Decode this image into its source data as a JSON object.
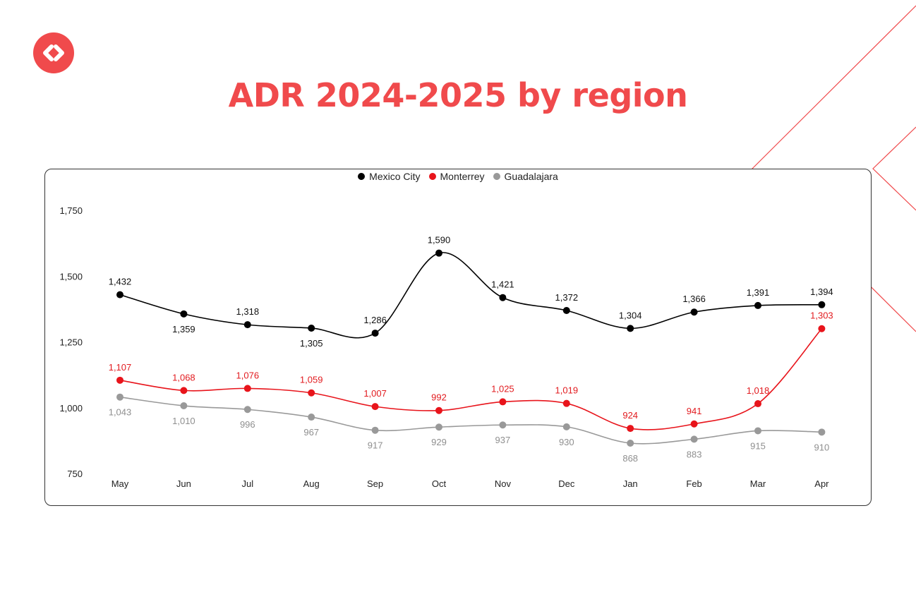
{
  "brand": {
    "logo_icon": "chevrons-left-right-icon",
    "accent": "#f04a4c"
  },
  "title": "ADR 2024-2025 by region",
  "chart_data": {
    "type": "line",
    "title": "ADR 2024-2025 by region",
    "categories": [
      "May",
      "Jun",
      "Jul",
      "Aug",
      "Sep",
      "Oct",
      "Nov",
      "Dec",
      "Jan",
      "Feb",
      "Mar",
      "Apr"
    ],
    "yticks": [
      "1,750",
      "1,500",
      "1,250",
      "1,000",
      "750"
    ],
    "ytick_values": [
      1750,
      1500,
      1250,
      1000,
      750
    ],
    "ylim": [
      750,
      1750
    ],
    "legend_position": "top-center",
    "series": [
      {
        "name": "Mexico City",
        "color": "#000000",
        "values": [
          1432,
          1359,
          1318,
          1305,
          1286,
          1590,
          1421,
          1372,
          1304,
          1366,
          1391,
          1394
        ],
        "labels": [
          "1,432",
          "1,359",
          "1,318",
          "1,305",
          "1,286",
          "1,590",
          "1,421",
          "1,372",
          "1,304",
          "1,366",
          "1,391",
          "1,394"
        ],
        "label_side": [
          "above",
          "below",
          "above",
          "below",
          "above",
          "above",
          "above",
          "above",
          "above",
          "above",
          "above",
          "above"
        ]
      },
      {
        "name": "Monterrey",
        "color": "#e8141b",
        "values": [
          1107,
          1068,
          1076,
          1059,
          1007,
          992,
          1025,
          1019,
          924,
          941,
          1018,
          1303
        ],
        "labels": [
          "1,107",
          "1,068",
          "1,076",
          "1,059",
          "1,007",
          "992",
          "1,025",
          "1,019",
          "924",
          "941",
          "1,018",
          "1,303"
        ],
        "label_side": [
          "above",
          "above",
          "above",
          "above",
          "above",
          "above",
          "above",
          "above",
          "above",
          "above",
          "above",
          "above"
        ]
      },
      {
        "name": "Guadalajara",
        "color": "#999999",
        "values": [
          1043,
          1010,
          996,
          967,
          917,
          929,
          937,
          930,
          868,
          883,
          915,
          910
        ],
        "labels": [
          "1,043",
          "1,010",
          "996",
          "967",
          "917",
          "929",
          "937",
          "930",
          "868",
          "883",
          "915",
          "910"
        ],
        "label_side": [
          "below",
          "below",
          "below",
          "below",
          "below",
          "below",
          "below",
          "below",
          "below",
          "below",
          "below",
          "below"
        ]
      }
    ]
  }
}
